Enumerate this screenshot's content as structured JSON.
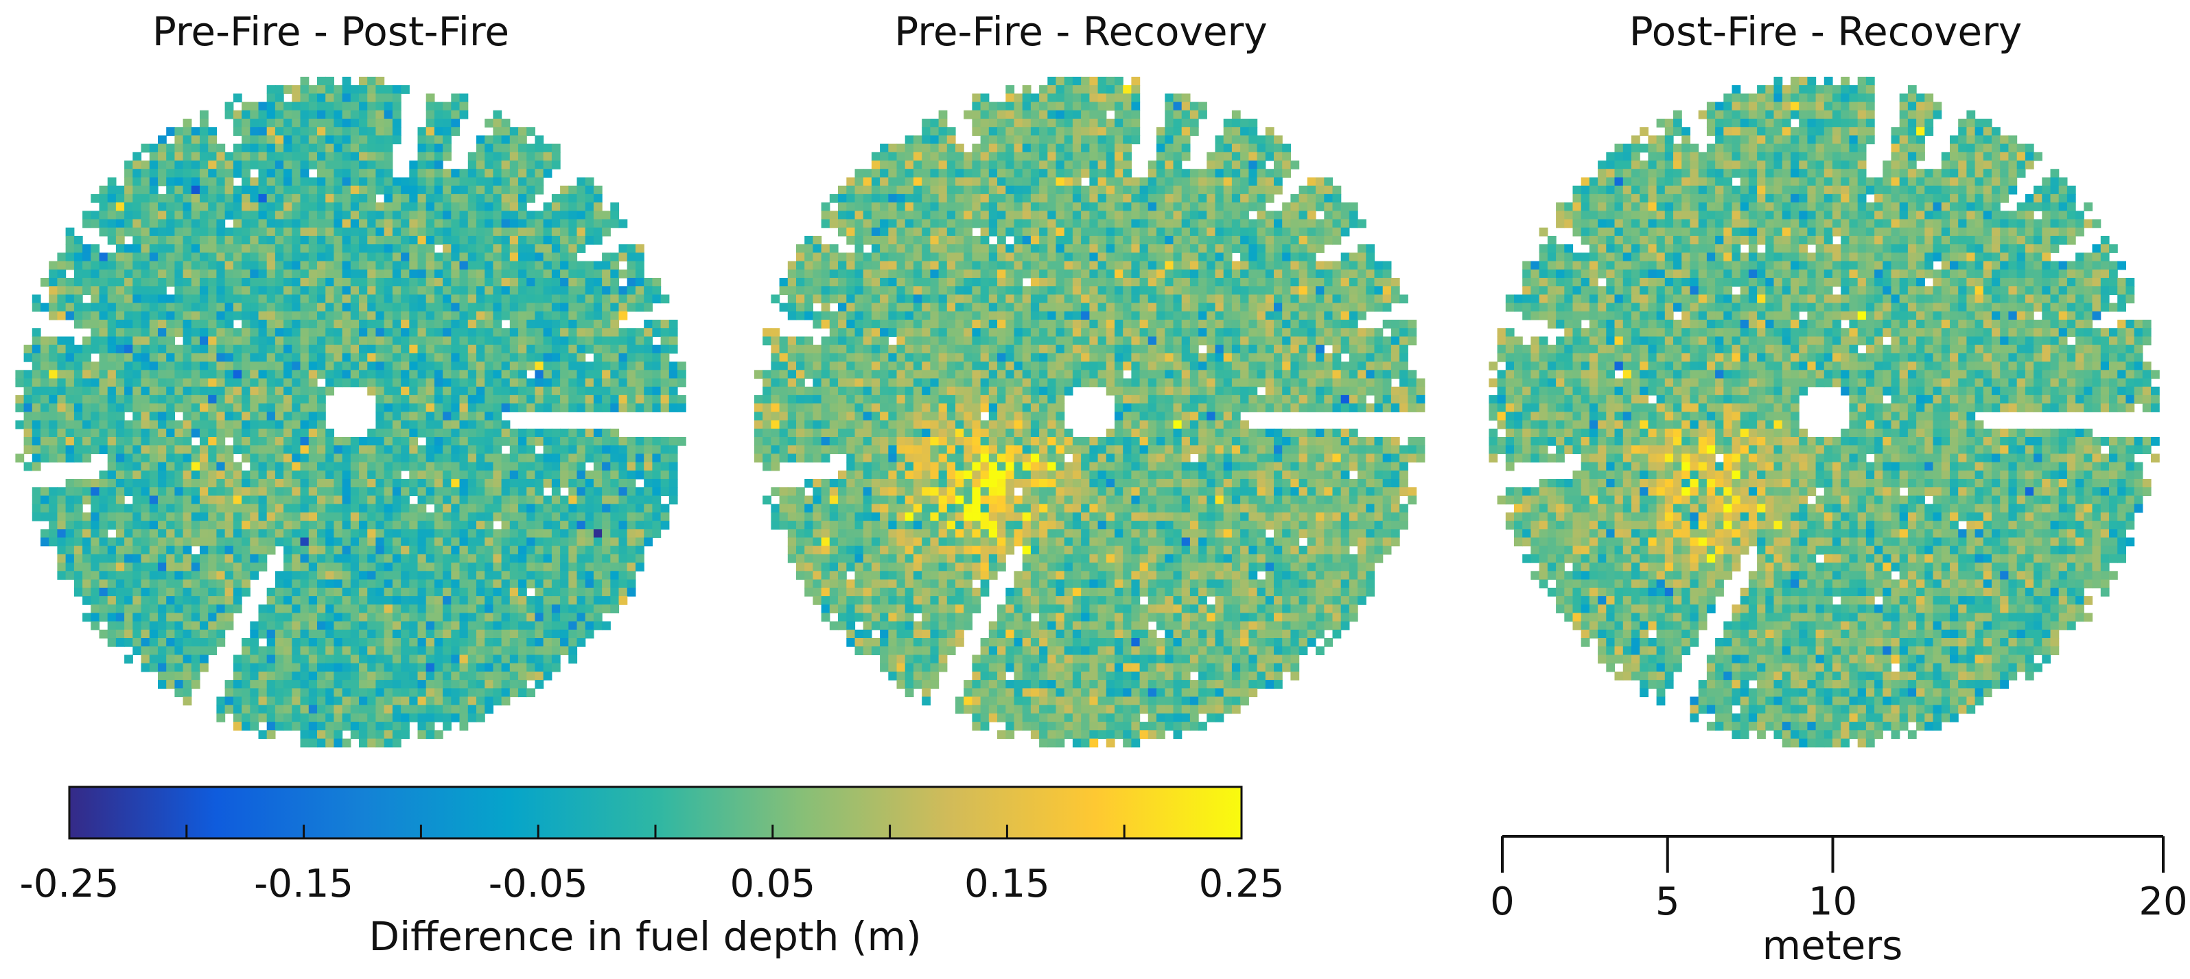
{
  "chart_data": {
    "type": "heatmap",
    "panels": [
      {
        "title": "Pre-Fire - Post-Fire",
        "hotspot_strength": 0.35,
        "base_shift": 0.0,
        "seed": 11
      },
      {
        "title": "Pre-Fire - Recovery",
        "hotspot_strength": 1.0,
        "base_shift": 0.03,
        "seed": 23
      },
      {
        "title": "Post-Fire - Recovery",
        "hotspot_strength": 0.8,
        "base_shift": 0.025,
        "seed": 37
      }
    ],
    "colorbar": {
      "label": "Difference in fuel depth (m)",
      "range": [
        -0.25,
        0.25
      ],
      "tick_labels": [
        "-0.25",
        "-0.15",
        "-0.05",
        "0.05",
        "0.15",
        "0.25"
      ],
      "minor_ticks": [
        -0.25,
        -0.2,
        -0.15,
        -0.1,
        -0.05,
        0.0,
        0.05,
        0.1,
        0.15,
        0.2,
        0.25
      ],
      "colors": [
        "#352a87",
        "#0f5cdd",
        "#1481d6",
        "#06a4ca",
        "#2eb7a4",
        "#87bf77",
        "#d1bb59",
        "#fec832",
        "#f9fb0e"
      ]
    },
    "scale_bar": {
      "label": "meters",
      "range": [
        0,
        20
      ],
      "ticks": [
        0,
        5,
        10,
        20
      ],
      "tick_labels": [
        "0",
        "5",
        "10",
        "20"
      ]
    },
    "grid_extent_m": [
      -10,
      10
    ],
    "xlabel": "",
    "ylabel": ""
  }
}
